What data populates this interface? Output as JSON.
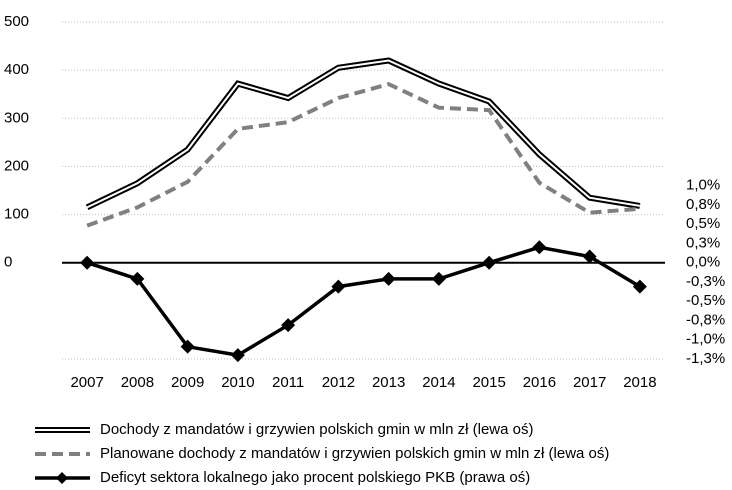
{
  "chart_data": {
    "type": "line",
    "categories": [
      "2007",
      "2008",
      "2009",
      "2010",
      "2011",
      "2012",
      "2013",
      "2014",
      "2015",
      "2016",
      "2017",
      "2018"
    ],
    "series": [
      {
        "name": "Dochody z mandatów i grzywien polskich gmin w mln zł (lewa oś)",
        "color": "#000000",
        "line_style": "double",
        "values": [
          115,
          165,
          235,
          372,
          342,
          405,
          420,
          372,
          335,
          225,
          135,
          118
        ]
      },
      {
        "name": "Planowane dochody z mandatów i grzywien polskich gmin w mln zł (lewa oś)",
        "color": "#808080",
        "line_style": "dashed",
        "values": [
          77,
          115,
          168,
          278,
          292,
          342,
          371,
          322,
          317,
          166,
          104,
          112
        ]
      },
      {
        "name": "Deficyt sektora lokalnego jako procent polskiego PKB (prawa oś)",
        "color": "#000000",
        "line_style": "solid",
        "marker": "diamond",
        "axis": "y2",
        "values": [
          0.0,
          -0.21,
          -1.09,
          -1.2,
          -0.81,
          -0.31,
          -0.21,
          -0.21,
          0.0,
          0.2,
          0.08,
          -0.31
        ]
      }
    ],
    "ylim": [
      -200,
      500
    ],
    "yticks": [
      0,
      100,
      200,
      300,
      400,
      500
    ],
    "y2lim": [
      -1.25,
      3.125
    ],
    "y2ticks": [
      {
        "value": 1.0,
        "label": "1,0%"
      },
      {
        "value": 0.75,
        "label": "0,8%"
      },
      {
        "value": 0.5,
        "label": "0,5%"
      },
      {
        "value": 0.25,
        "label": "0,3%"
      },
      {
        "value": 0,
        "label": "0,0%"
      },
      {
        "value": -0.25,
        "label": "-0,3%"
      },
      {
        "value": -0.5,
        "label": "-0,5%"
      },
      {
        "value": -0.75,
        "label": "-0,8%"
      },
      {
        "value": -1.0,
        "label": "-1,0%"
      },
      {
        "value": -1.25,
        "label": "-1,3%"
      }
    ],
    "grid": true,
    "legend": "bottom"
  }
}
